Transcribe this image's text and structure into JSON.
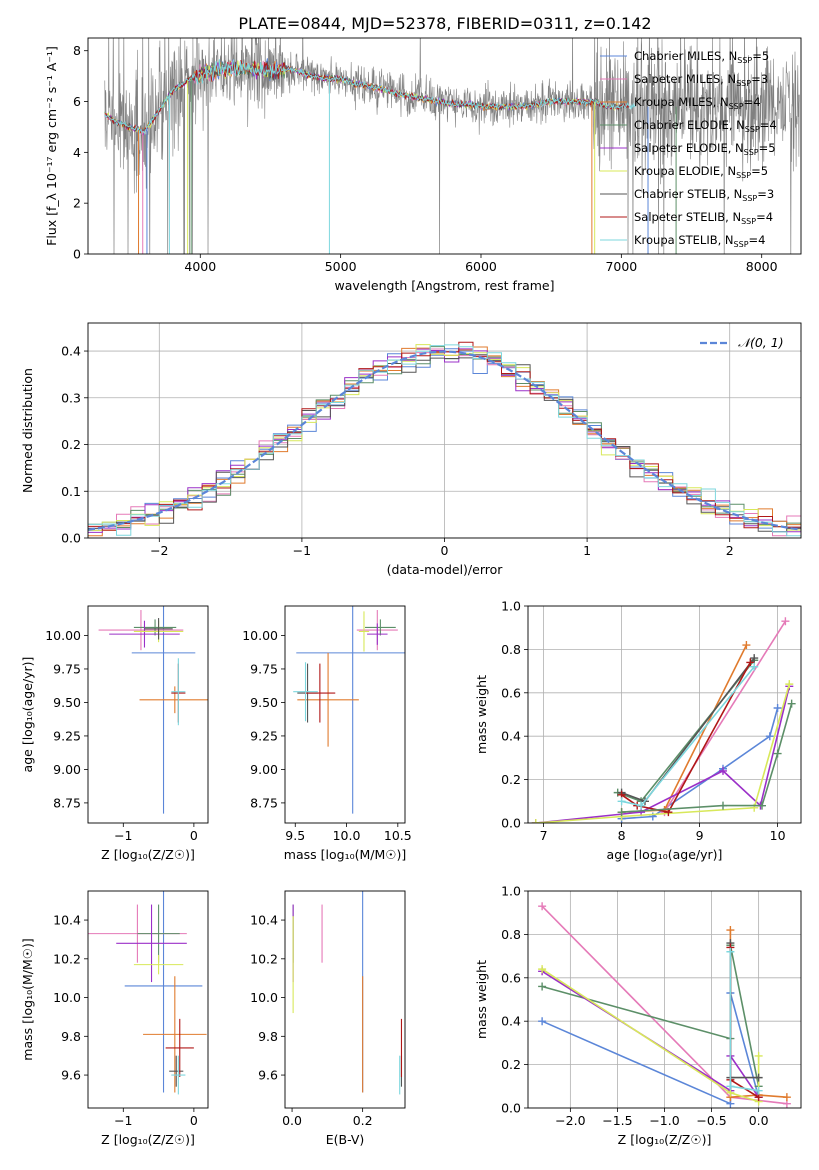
{
  "figure": {
    "title": "PLATE=0844, MJD=52378, FIBERID=0311, z=0.142"
  },
  "models": [
    {
      "name": "Chabrier MILES",
      "nssp": "5",
      "color": "#5b86d8"
    },
    {
      "name": "Salpeter MILES",
      "nssp": "3",
      "color": "#e57ab8"
    },
    {
      "name": "Kroupa MILES",
      "nssp": "4",
      "color": "#e07b2e"
    },
    {
      "name": "Chabrier ELODIE",
      "nssp": "4",
      "color": "#5c8f68"
    },
    {
      "name": "Salpeter ELODIE",
      "nssp": "5",
      "color": "#9b30c8"
    },
    {
      "name": "Kroupa ELODIE",
      "nssp": "5",
      "color": "#d8e85a"
    },
    {
      "name": "Chabrier STELIB",
      "nssp": "3",
      "color": "#555555"
    },
    {
      "name": "Salpeter STELIB",
      "nssp": "4",
      "color": "#b01818"
    },
    {
      "name": "Kroupa STELIB",
      "nssp": "4",
      "color": "#7dd7de"
    }
  ],
  "chart_data": [
    {
      "id": "spectrum",
      "type": "line",
      "xlabel": "wavelength [Angstrom, rest frame]",
      "ylabel": "Flux [f_λ 10⁻¹⁷ erg cm⁻² s⁻¹ A⁻¹]",
      "xlim": [
        3200,
        8280
      ],
      "ylim": [
        0,
        8.5
      ],
      "xticks": [
        4000,
        5000,
        6000,
        7000,
        8000
      ],
      "yticks": [
        0,
        2,
        4,
        6,
        8
      ],
      "data_color": "#808080",
      "model_curve": [
        [
          3320,
          5.5
        ],
        [
          3400,
          5.2
        ],
        [
          3500,
          5.0
        ],
        [
          3600,
          4.8
        ],
        [
          3700,
          5.6
        ],
        [
          3800,
          6.4
        ],
        [
          3900,
          6.8
        ],
        [
          4000,
          7.1
        ],
        [
          4100,
          7.2
        ],
        [
          4200,
          7.3
        ],
        [
          4300,
          7.3
        ],
        [
          4400,
          7.3
        ],
        [
          4500,
          7.2
        ],
        [
          4600,
          7.3
        ],
        [
          4700,
          7.2
        ],
        [
          4800,
          7.0
        ],
        [
          4900,
          6.9
        ],
        [
          5000,
          6.9
        ],
        [
          5100,
          6.7
        ],
        [
          5200,
          6.6
        ],
        [
          5300,
          6.5
        ],
        [
          5400,
          6.3
        ],
        [
          5500,
          6.2
        ],
        [
          5600,
          6.1
        ],
        [
          5700,
          6.0
        ],
        [
          5800,
          5.9
        ],
        [
          5900,
          5.9
        ],
        [
          6000,
          5.8
        ],
        [
          6100,
          5.8
        ],
        [
          6200,
          5.8
        ],
        [
          6300,
          5.8
        ],
        [
          6400,
          5.9
        ],
        [
          6500,
          6.0
        ],
        [
          6600,
          6.0
        ],
        [
          6700,
          6.0
        ],
        [
          6800,
          6.0
        ],
        [
          6900,
          5.8
        ]
      ]
    },
    {
      "id": "residuals",
      "type": "step",
      "xlabel": "(data-model)/error",
      "ylabel": "Normed distribution",
      "xlim": [
        -2.5,
        2.5
      ],
      "ylim": [
        0,
        0.46
      ],
      "xticks": [
        -2,
        -1,
        0,
        1,
        2
      ],
      "yticks": [
        0.0,
        0.1,
        0.2,
        0.3,
        0.4
      ],
      "grid": true,
      "legend": "top-right",
      "normal_label": "𝒩(0, 1)",
      "normal_color": "#5b86d8"
    },
    {
      "id": "age_vs_Z",
      "type": "errorbar",
      "xlabel": "Z [log₁₀(Z/Z☉)]",
      "ylabel": "age  [log₁₀(age/yr)]",
      "xlim": [
        -1.5,
        0.2
      ],
      "ylim": [
        8.6,
        10.22
      ],
      "xticks": [
        -1,
        0
      ],
      "yticks": [
        8.75,
        9.0,
        9.25,
        9.5,
        9.75,
        10.0
      ],
      "points": [
        {
          "m": 0,
          "x": -0.43,
          "xe": 0.45,
          "y": 9.87,
          "ye": 1.2
        },
        {
          "m": 1,
          "x": -0.75,
          "xe": 0.6,
          "y": 10.04,
          "ye": 0.15
        },
        {
          "m": 2,
          "x": -0.27,
          "xe": 0.5,
          "y": 9.52,
          "ye": 0.1
        },
        {
          "m": 3,
          "x": -0.55,
          "xe": 0.3,
          "y": 10.06,
          "ye": 0.06
        },
        {
          "m": 4,
          "x": -0.7,
          "xe": 0.5,
          "y": 10.01,
          "ye": 0.1
        },
        {
          "m": 5,
          "x": -0.5,
          "xe": 0.35,
          "y": 10.03,
          "ye": 0.08
        },
        {
          "m": 6,
          "x": -0.5,
          "xe": 0.2,
          "y": 10.05,
          "ye": 0.08
        },
        {
          "m": 7,
          "x": -0.22,
          "xe": 0.1,
          "y": 9.57,
          "ye": 0.22
        },
        {
          "m": 8,
          "x": -0.22,
          "xe": 0.1,
          "y": 9.58,
          "ye": 0.25
        }
      ]
    },
    {
      "id": "age_vs_mass",
      "type": "errorbar",
      "xlabel": "mass [log₁₀(M/M☉)]",
      "ylabel": "",
      "xlim": [
        9.4,
        10.57
      ],
      "ylim": [
        8.6,
        10.22
      ],
      "xticks": [
        9.5,
        10.0,
        10.5
      ],
      "yticks": [
        8.75,
        9.0,
        9.25,
        9.5,
        9.75,
        10.0
      ],
      "points": [
        {
          "m": 0,
          "x": 10.06,
          "xe": 0.55,
          "y": 9.87,
          "ye": 1.2
        },
        {
          "m": 1,
          "x": 10.3,
          "xe": 0.2,
          "y": 10.04,
          "ye": 0.15
        },
        {
          "m": 2,
          "x": 9.82,
          "xe": 0.3,
          "y": 9.52,
          "ye": 0.35
        },
        {
          "m": 3,
          "x": 10.33,
          "xe": 0.15,
          "y": 10.06,
          "ye": 0.06
        },
        {
          "m": 4,
          "x": 10.3,
          "xe": 0.1,
          "y": 10.01,
          "ye": 0.08
        },
        {
          "m": 5,
          "x": 10.17,
          "xe": 0.05,
          "y": 10.03,
          "ye": 0.15
        },
        {
          "m": 6,
          "x": 9.62,
          "xe": 0.1,
          "y": 9.57,
          "ye": 0.22
        },
        {
          "m": 7,
          "x": 9.74,
          "xe": 0.15,
          "y": 9.57,
          "ye": 0.22
        },
        {
          "m": 8,
          "x": 9.6,
          "xe": 0.12,
          "y": 9.58,
          "ye": 0.22
        }
      ]
    },
    {
      "id": "weight_vs_age",
      "type": "line",
      "xlabel": "age  [log₁₀(age/yr)]",
      "ylabel": "mass weight",
      "xlim": [
        6.8,
        10.3
      ],
      "ylim": [
        0,
        1.0
      ],
      "xticks": [
        7,
        8,
        9,
        10
      ],
      "yticks": [
        0.0,
        0.2,
        0.4,
        0.6,
        0.8,
        1.0
      ],
      "grid": true,
      "series": [
        {
          "m": 0,
          "x": [
            8.0,
            8.4,
            9.3,
            9.9,
            10.0
          ],
          "y": [
            0.02,
            0.03,
            0.25,
            0.4,
            0.53
          ]
        },
        {
          "m": 1,
          "x": [
            8.55,
            10.1
          ],
          "y": [
            0.05,
            0.93
          ]
        },
        {
          "m": 2,
          "x": [
            8.0,
            8.55,
            9.6
          ],
          "y": [
            0.05,
            0.06,
            0.82
          ]
        },
        {
          "m": 3,
          "x": [
            7.95,
            8.25,
            9.7
          ],
          "y": [
            0.14,
            0.1,
            0.75
          ]
        },
        {
          "m": 4,
          "x": [
            6.9,
            8.25,
            9.3,
            9.78,
            10.15
          ],
          "y": [
            0.0,
            0.05,
            0.24,
            0.08,
            0.63
          ]
        },
        {
          "m": 5,
          "x": [
            6.9,
            8.0,
            9.7,
            10.15
          ],
          "y": [
            0.0,
            0.03,
            0.07,
            0.64
          ]
        },
        {
          "m": 6,
          "x": [
            8.0,
            8.3,
            9.7
          ],
          "y": [
            0.14,
            0.1,
            0.76
          ]
        },
        {
          "m": 7,
          "x": [
            8.0,
            8.2,
            8.6,
            9.65
          ],
          "y": [
            0.13,
            0.08,
            0.05,
            0.74
          ]
        },
        {
          "m": 8,
          "x": [
            8.0,
            8.25,
            9.7
          ],
          "y": [
            0.1,
            0.08,
            0.72
          ]
        },
        {
          "m": 3,
          "x": [
            8.0,
            9.3,
            9.8,
            10.0,
            10.18
          ],
          "y": [
            0.05,
            0.08,
            0.08,
            0.32,
            0.55
          ]
        }
      ]
    },
    {
      "id": "mass_vs_Z",
      "type": "errorbar",
      "xlabel": "Z [log₁₀(Z/Z☉)]",
      "ylabel": "mass [log₁₀(M/M☉)]",
      "xlim": [
        -1.5,
        0.2
      ],
      "ylim": [
        9.43,
        10.55
      ],
      "xticks": [
        -1,
        0
      ],
      "yticks": [
        9.6,
        9.8,
        10.0,
        10.2,
        10.4
      ],
      "points": [
        {
          "m": 0,
          "x": -0.43,
          "xe": 0.55,
          "y": 10.06,
          "ye": 0.55
        },
        {
          "m": 1,
          "x": -0.8,
          "xe": 0.7,
          "y": 10.33,
          "ye": 0.15
        },
        {
          "m": 2,
          "x": -0.27,
          "xe": 0.45,
          "y": 9.81,
          "ye": 0.3
        },
        {
          "m": 3,
          "x": -0.5,
          "xe": 0.3,
          "y": 10.33,
          "ye": 0.15
        },
        {
          "m": 4,
          "x": -0.6,
          "xe": 0.5,
          "y": 10.28,
          "ye": 0.2
        },
        {
          "m": 5,
          "x": -0.5,
          "xe": 0.35,
          "y": 10.17,
          "ye": 0.05
        },
        {
          "m": 6,
          "x": -0.25,
          "xe": 0.1,
          "y": 9.62,
          "ye": 0.08
        },
        {
          "m": 7,
          "x": -0.2,
          "xe": 0.2,
          "y": 9.74,
          "ye": 0.15
        },
        {
          "m": 8,
          "x": -0.22,
          "xe": 0.1,
          "y": 9.6,
          "ye": 0.1
        }
      ]
    },
    {
      "id": "mass_vs_ebv",
      "type": "errorbar",
      "xlabel": "E(B-V)",
      "ylabel": "",
      "xlim": [
        -0.02,
        0.32
      ],
      "ylim": [
        9.43,
        10.55
      ],
      "xticks": [
        0.0,
        0.2
      ],
      "yticks": [
        9.6,
        9.8,
        10.0,
        10.2,
        10.4
      ],
      "points": [
        {
          "m": 0,
          "x": 0.2,
          "xe": 0.0,
          "y": 10.06,
          "ye": 0.55
        },
        {
          "m": 1,
          "x": 0.085,
          "xe": 0.0,
          "y": 10.33,
          "ye": 0.15
        },
        {
          "m": 2,
          "x": 0.2,
          "xe": 0.0,
          "y": 9.81,
          "ye": 0.3
        },
        {
          "m": 3,
          "x": 0.003,
          "xe": 0.0,
          "y": 10.33,
          "ye": 0.15
        },
        {
          "m": 4,
          "x": 0.003,
          "xe": 0.0,
          "y": 10.28,
          "ye": 0.2
        },
        {
          "m": 5,
          "x": 0.003,
          "xe": 0.0,
          "y": 10.17,
          "ye": 0.25
        },
        {
          "m": 6,
          "x": 0.31,
          "xe": 0.0,
          "y": 9.62,
          "ye": 0.08
        },
        {
          "m": 7,
          "x": 0.31,
          "xe": 0.0,
          "y": 9.74,
          "ye": 0.15
        },
        {
          "m": 8,
          "x": 0.305,
          "xe": 0.0,
          "y": 9.6,
          "ye": 0.1
        }
      ]
    },
    {
      "id": "weight_vs_Z",
      "type": "line",
      "xlabel": "Z [log₁₀(Z/Z☉)]",
      "ylabel": "mass weight",
      "xlim": [
        -2.45,
        0.45
      ],
      "ylim": [
        0,
        1.0
      ],
      "xticks": [
        -2.0,
        -1.5,
        -1.0,
        -0.5,
        0.0
      ],
      "yticks": [
        0.0,
        0.2,
        0.4,
        0.6,
        0.8,
        1.0
      ],
      "grid": true,
      "series": [
        {
          "m": 0,
          "x": [
            -2.3,
            -0.3,
            -0.3,
            0.0
          ],
          "y": [
            0.4,
            0.02,
            0.53,
            0.05
          ]
        },
        {
          "m": 1,
          "x": [
            -2.3,
            -0.3,
            0.3
          ],
          "y": [
            0.93,
            0.05,
            0.02
          ]
        },
        {
          "m": 2,
          "x": [
            -0.3,
            -0.3,
            0.0,
            0.3
          ],
          "y": [
            0.82,
            0.05,
            0.06,
            0.05
          ]
        },
        {
          "m": 3,
          "x": [
            -2.3,
            -0.3,
            -0.3,
            0.0
          ],
          "y": [
            0.56,
            0.32,
            0.75,
            0.1
          ]
        },
        {
          "m": 4,
          "x": [
            -2.3,
            -0.3,
            -0.3,
            0.0
          ],
          "y": [
            0.63,
            0.08,
            0.24,
            0.05
          ]
        },
        {
          "m": 5,
          "x": [
            -2.3,
            -0.3,
            0.0,
            0.0
          ],
          "y": [
            0.64,
            0.07,
            0.03,
            0.24
          ]
        },
        {
          "m": 6,
          "x": [
            -0.3,
            -0.3,
            0.0
          ],
          "y": [
            0.76,
            0.14,
            0.14
          ]
        },
        {
          "m": 7,
          "x": [
            -0.3,
            -0.3,
            0.0
          ],
          "y": [
            0.74,
            0.13,
            0.05
          ]
        },
        {
          "m": 8,
          "x": [
            -0.3,
            -0.3,
            0.0
          ],
          "y": [
            0.72,
            0.1,
            0.08
          ]
        }
      ]
    }
  ]
}
